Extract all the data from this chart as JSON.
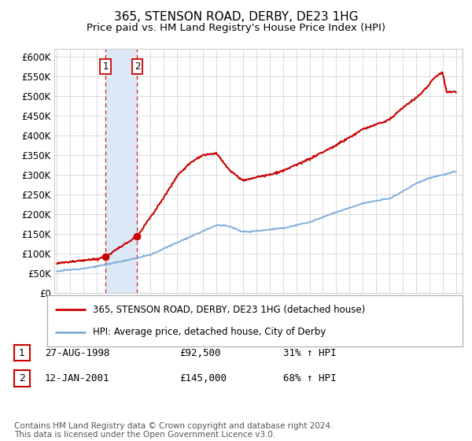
{
  "title": "365, STENSON ROAD, DERBY, DE23 1HG",
  "subtitle": "Price paid vs. HM Land Registry's House Price Index (HPI)",
  "ylim": [
    0,
    620000
  ],
  "yticks": [
    0,
    50000,
    100000,
    150000,
    200000,
    250000,
    300000,
    350000,
    400000,
    450000,
    500000,
    550000,
    600000
  ],
  "xlim_start": 1994.8,
  "xlim_end": 2025.5,
  "legend_entries": [
    "365, STENSON ROAD, DERBY, DE23 1HG (detached house)",
    "HPI: Average price, detached house, City of Derby"
  ],
  "line_colors": [
    "#cc0000",
    "#7aabda"
  ],
  "transactions": [
    {
      "label": "1",
      "date": "27-AUG-1998",
      "price": 92500,
      "pct": "31%",
      "x": 1998.65
    },
    {
      "label": "2",
      "date": "12-JAN-2001",
      "price": 145000,
      "pct": "68%",
      "x": 2001.04
    }
  ],
  "footnote": "Contains HM Land Registry data © Crown copyright and database right 2024.\nThis data is licensed under the Open Government Licence v3.0.",
  "background_color": "#ffffff",
  "grid_color": "#cccccc",
  "shade_color": "#dce8f5",
  "transaction_box_color": "#cc0000",
  "title_fontsize": 11,
  "subtitle_fontsize": 9.5,
  "axis_fontsize": 8.5,
  "legend_fontsize": 8.5,
  "table_fontsize": 9,
  "footnote_fontsize": 7.5,
  "hpi_anchors_x": [
    1995,
    1997,
    1998,
    2000,
    2002,
    2004,
    2006,
    2007,
    2008,
    2009,
    2010,
    2012,
    2014,
    2016,
    2018,
    2020,
    2021,
    2022,
    2023,
    2025
  ],
  "hpi_anchors_y": [
    56000,
    63000,
    68000,
    82000,
    97000,
    128000,
    158000,
    173000,
    170000,
    155000,
    158000,
    165000,
    180000,
    205000,
    228000,
    240000,
    258000,
    278000,
    292000,
    308000
  ],
  "prop_anchors_x": [
    1995,
    1997,
    1998.0,
    1998.65,
    2001.04,
    2003,
    2004,
    2005,
    2006,
    2007,
    2008,
    2009,
    2010,
    2011,
    2012,
    2014,
    2016,
    2018,
    2020,
    2021,
    2022,
    2022.5,
    2023,
    2023.5,
    2024,
    2024.3,
    2025
  ],
  "prop_anchors_y": [
    76000,
    83000,
    87000,
    92500,
    145000,
    240000,
    295000,
    330000,
    350000,
    355000,
    310000,
    285000,
    295000,
    300000,
    310000,
    340000,
    375000,
    415000,
    440000,
    470000,
    495000,
    510000,
    530000,
    550000,
    560000,
    510000,
    510000
  ]
}
